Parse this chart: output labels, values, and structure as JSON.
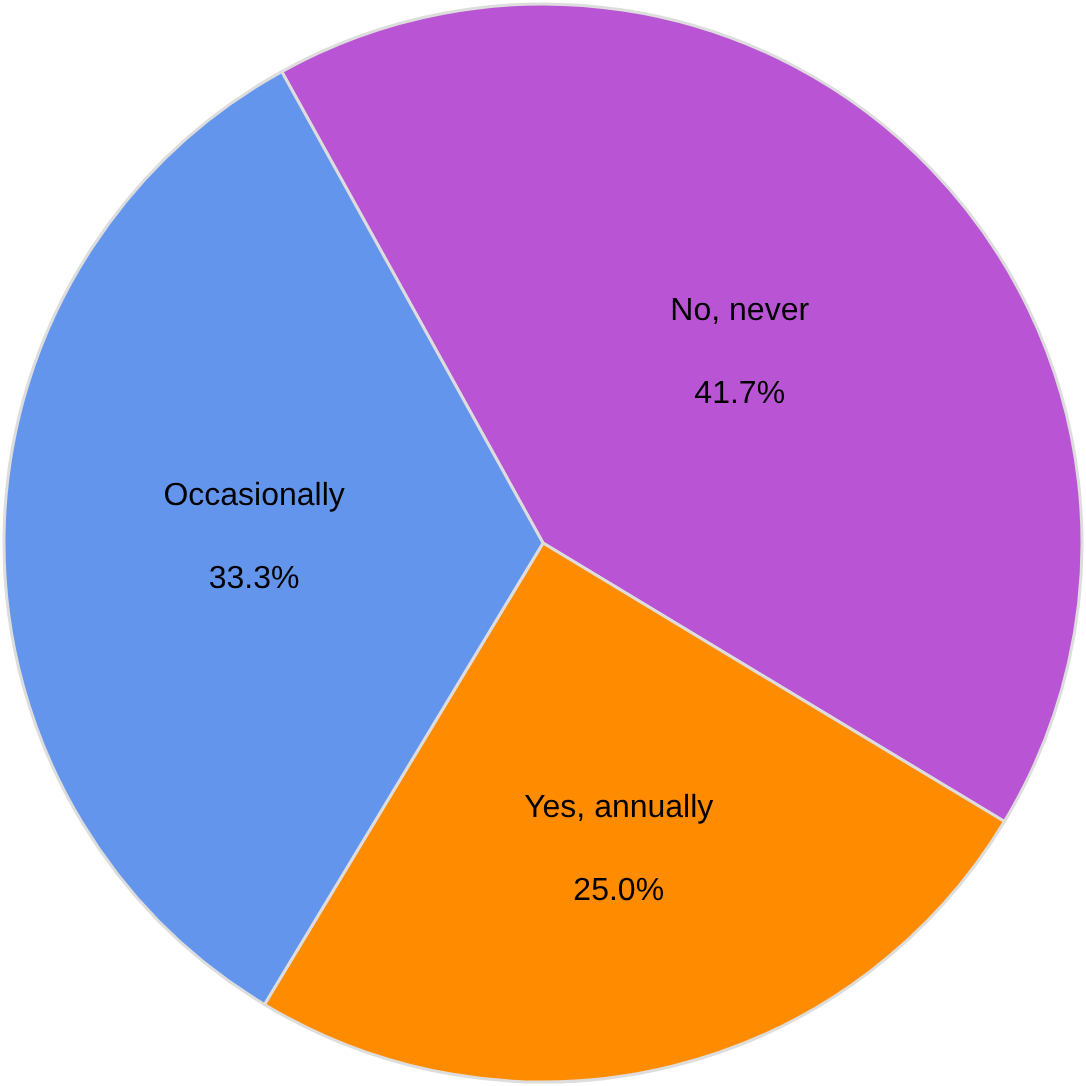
{
  "chart_data": {
    "type": "pie",
    "categories": [
      "No, never",
      "Yes, annually",
      "Occasionally"
    ],
    "values": [
      41.7,
      25.0,
      33.3
    ],
    "colors": [
      "#b955d4",
      "#ff8c00",
      "#6495ed"
    ],
    "value_labels": [
      "41.7%",
      "25.0%",
      "33.3%"
    ],
    "legend": false
  }
}
